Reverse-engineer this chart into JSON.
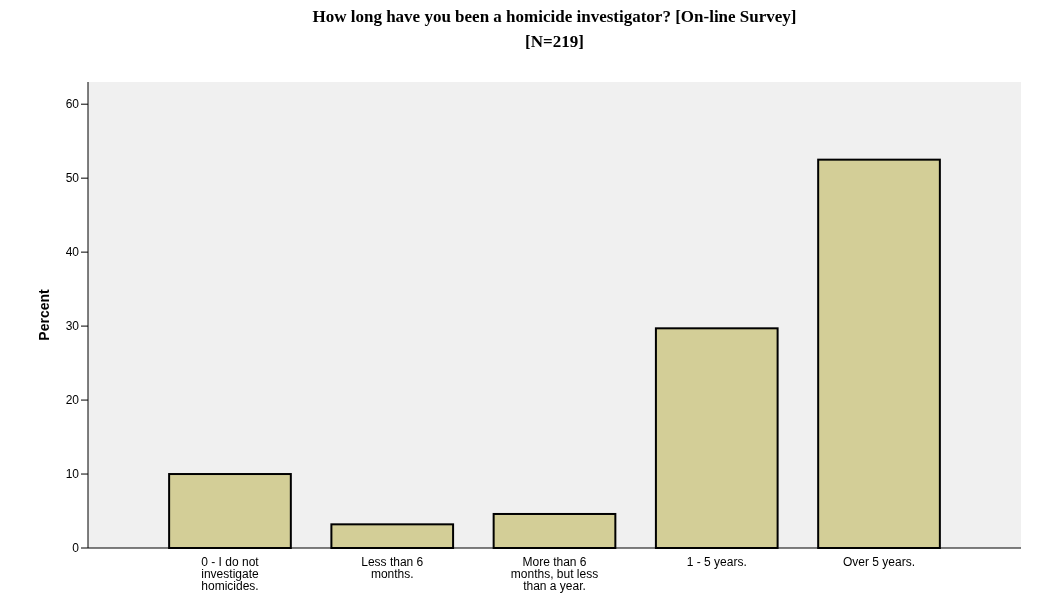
{
  "chart_data": {
    "type": "bar",
    "title": "How long have you been a homicide investigator?  [On-line Survey]\n[N=219]",
    "ylabel": "Percent",
    "categories": [
      "0 - I do not investigate homicides.",
      "Less than 6 months.",
      "More than 6 months, but less than a year.",
      "1 - 5 years.",
      "Over 5 years."
    ],
    "values": [
      10.0,
      3.2,
      4.6,
      29.7,
      52.5
    ],
    "color": "#d3ce97",
    "ylim": [
      0,
      63
    ],
    "yticks": [
      0,
      10,
      20,
      30,
      40,
      50,
      60
    ],
    "grid": false
  }
}
